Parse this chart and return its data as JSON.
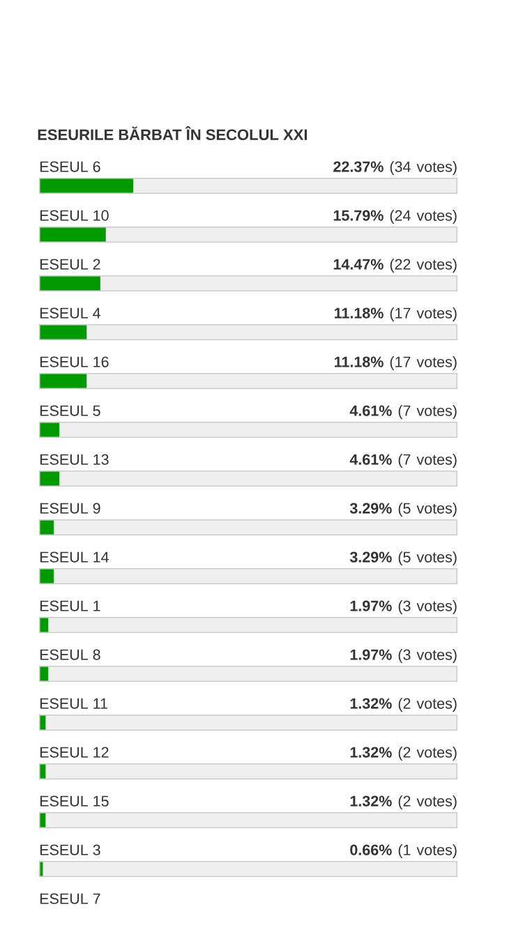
{
  "chart_data": {
    "type": "bar",
    "orientation": "horizontal",
    "title": "ESEURILE BĂRBAT ÎN SECOLUL XXI",
    "categories": [
      "ESEUL 6",
      "ESEUL 10",
      "ESEUL 2",
      "ESEUL 4",
      "ESEUL 16",
      "ESEUL 5",
      "ESEUL 13",
      "ESEUL 9",
      "ESEUL 14",
      "ESEUL 1",
      "ESEUL 8",
      "ESEUL 11",
      "ESEUL 12",
      "ESEUL 15",
      "ESEUL 3",
      "ESEUL 7"
    ],
    "values": [
      22.37,
      15.79,
      14.47,
      11.18,
      11.18,
      4.61,
      4.61,
      3.29,
      3.29,
      1.97,
      1.97,
      1.32,
      1.32,
      1.32,
      0.66,
      null
    ],
    "value_labels": [
      "**22.37%** (34 votes)",
      "**15.79%** (24 votes)",
      "**14.47%** (22 votes)",
      "**11.18%** (17 votes)",
      "**11.18%** (17 votes)",
      "**4.61%** (7 votes)",
      "**4.61%** (7 votes)",
      "**3.29%** (5 votes)",
      "**3.29%** (5 votes)",
      "**1.97%** (3 votes)",
      "**1.97%** (3 votes)",
      "**1.32%** (2 votes)",
      "**1.32%** (2 votes)",
      "**1.32%** (2 votes)",
      "**0.66%** (1 votes)",
      null
    ],
    "color": "#009900",
    "xlim": [
      0,
      100
    ],
    "tick_labels": "y"
  }
}
